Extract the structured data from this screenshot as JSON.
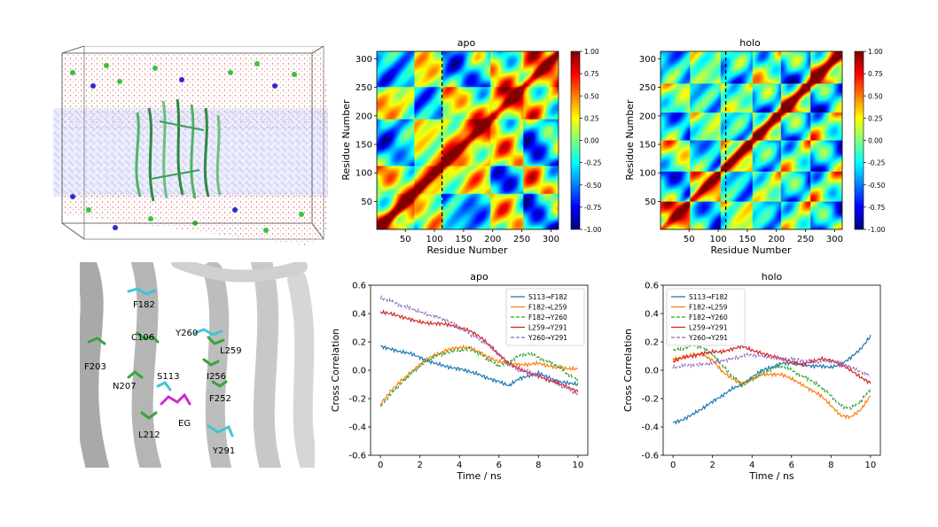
{
  "figure": {
    "membrane_panel": {
      "description_icon": "molecular-simulation-box"
    },
    "residue_panel": {
      "labels": [
        "F182",
        "C106",
        "Y260",
        "L259",
        "F203",
        "N207",
        "S113",
        "I256",
        "F252",
        "L212",
        "EG",
        "Y291"
      ]
    },
    "heatmaps": [
      {
        "title": "apo",
        "ylabel": "Residue Number",
        "xlabel": "Residue Number"
      },
      {
        "title": "holo",
        "ylabel": "Residue Number",
        "xlabel": "Residue Number"
      }
    ],
    "colorbar_ticks": [
      "1.00",
      "0.75",
      "0.50",
      "0.25",
      "0.00",
      "-0.25",
      "-0.50",
      "-0.75",
      "-1.00"
    ]
  },
  "chart_data": [
    {
      "type": "heatmap",
      "title": "apo",
      "xlabel": "Residue Number",
      "ylabel": "Residue Number",
      "xticks": [
        50,
        100,
        150,
        200,
        250,
        300
      ],
      "yticks": [
        50,
        100,
        150,
        200,
        250,
        300
      ],
      "xlim": [
        1,
        313
      ],
      "ylim": [
        1,
        313
      ],
      "vline": 113,
      "colorscale": "jet",
      "clim": [
        -1.0,
        1.0
      ]
    },
    {
      "type": "heatmap",
      "title": "holo",
      "xlabel": "Residue Number",
      "ylabel": "Residue Number",
      "xticks": [
        50,
        100,
        150,
        200,
        250,
        300
      ],
      "yticks": [
        50,
        100,
        150,
        200,
        250,
        300
      ],
      "xlim": [
        1,
        313
      ],
      "ylim": [
        1,
        313
      ],
      "vline": 113,
      "colorscale": "jet",
      "clim": [
        -1.0,
        1.0
      ]
    },
    {
      "type": "line",
      "title": "apo",
      "xlabel": "Time / ns",
      "ylabel": "Cross Correlation",
      "xlim": [
        -0.5,
        10.5
      ],
      "ylim": [
        -0.6,
        0.6
      ],
      "xticks": [
        0,
        2,
        4,
        6,
        8,
        10
      ],
      "yticks": [
        -0.6,
        -0.4,
        -0.2,
        0.0,
        0.2,
        0.4,
        0.6
      ],
      "legend": "top-right",
      "x": [
        0,
        0.5,
        1,
        1.5,
        2,
        2.5,
        3,
        3.5,
        4,
        4.5,
        5,
        5.5,
        6,
        6.5,
        7,
        7.5,
        8,
        8.5,
        9,
        9.5,
        10
      ],
      "series": [
        {
          "name": "S113→F182",
          "color": "#1f77b4",
          "dash": "solid",
          "values": [
            0.17,
            0.15,
            0.13,
            0.12,
            0.09,
            0.06,
            0.04,
            0.02,
            0.01,
            -0.01,
            -0.03,
            -0.06,
            -0.08,
            -0.11,
            -0.06,
            -0.04,
            -0.02,
            -0.05,
            -0.08,
            -0.09,
            -0.1
          ]
        },
        {
          "name": "F182→L259",
          "color": "#ff7f0e",
          "dash": "solid",
          "values": [
            -0.24,
            -0.15,
            -0.08,
            -0.02,
            0.04,
            0.09,
            0.12,
            0.15,
            0.16,
            0.16,
            0.13,
            0.09,
            0.06,
            0.05,
            0.04,
            0.04,
            0.05,
            0.03,
            0.02,
            0.01,
            0.01
          ]
        },
        {
          "name": "F182→Y260",
          "color": "#2ca02c",
          "dash": "dashed",
          "values": [
            -0.26,
            -0.17,
            -0.1,
            -0.03,
            0.03,
            0.08,
            0.11,
            0.13,
            0.14,
            0.15,
            0.12,
            0.07,
            0.03,
            0.06,
            0.1,
            0.12,
            0.09,
            0.06,
            0.03,
            -0.03,
            -0.07
          ]
        },
        {
          "name": "L259→Y291",
          "color": "#d62728",
          "dash": "solid",
          "values": [
            0.41,
            0.4,
            0.38,
            0.36,
            0.34,
            0.33,
            0.33,
            0.32,
            0.3,
            0.28,
            0.24,
            0.18,
            0.11,
            0.05,
            0.01,
            -0.02,
            -0.04,
            -0.07,
            -0.09,
            -0.12,
            -0.15
          ]
        },
        {
          "name": "Y260→Y291",
          "color": "#9467bd",
          "dash": "dashed",
          "values": [
            0.51,
            0.49,
            0.46,
            0.44,
            0.41,
            0.39,
            0.37,
            0.34,
            0.3,
            0.26,
            0.22,
            0.17,
            0.11,
            0.04,
            0.0,
            -0.01,
            -0.03,
            -0.06,
            -0.1,
            -0.13,
            -0.17
          ]
        }
      ]
    },
    {
      "type": "line",
      "title": "holo",
      "xlabel": "Time / ns",
      "ylabel": "Cross Correlation",
      "xlim": [
        -0.5,
        10.5
      ],
      "ylim": [
        -0.6,
        0.6
      ],
      "xticks": [
        0,
        2,
        4,
        6,
        8,
        10
      ],
      "yticks": [
        -0.6,
        -0.4,
        -0.2,
        0.0,
        0.2,
        0.4,
        0.6
      ],
      "legend": "top-left",
      "x": [
        0,
        0.5,
        1,
        1.5,
        2,
        2.5,
        3,
        3.5,
        4,
        4.5,
        5,
        5.5,
        6,
        6.5,
        7,
        7.5,
        8,
        8.5,
        9,
        9.5,
        10
      ],
      "series": [
        {
          "name": "S113→F182",
          "color": "#1f77b4",
          "dash": "solid",
          "values": [
            -0.37,
            -0.35,
            -0.31,
            -0.27,
            -0.22,
            -0.18,
            -0.13,
            -0.1,
            -0.05,
            0.0,
            0.02,
            0.05,
            0.05,
            0.04,
            0.03,
            0.03,
            0.02,
            0.04,
            0.09,
            0.15,
            0.24
          ]
        },
        {
          "name": "F182→L259",
          "color": "#ff7f0e",
          "dash": "solid",
          "values": [
            0.08,
            0.09,
            0.11,
            0.11,
            0.07,
            -0.01,
            -0.06,
            -0.1,
            -0.06,
            -0.03,
            -0.03,
            -0.03,
            -0.06,
            -0.1,
            -0.14,
            -0.18,
            -0.25,
            -0.32,
            -0.33,
            -0.28,
            -0.18
          ]
        },
        {
          "name": "F182→Y260",
          "color": "#2ca02c",
          "dash": "dashed",
          "values": [
            0.14,
            0.15,
            0.18,
            0.16,
            0.11,
            0.03,
            -0.04,
            -0.1,
            -0.07,
            -0.02,
            0.01,
            0.03,
            0.0,
            -0.04,
            -0.07,
            -0.12,
            -0.18,
            -0.25,
            -0.27,
            -0.22,
            -0.13
          ]
        },
        {
          "name": "L259→Y291",
          "color": "#d62728",
          "dash": "solid",
          "values": [
            0.06,
            0.09,
            0.1,
            0.12,
            0.13,
            0.13,
            0.15,
            0.17,
            0.14,
            0.12,
            0.1,
            0.08,
            0.06,
            0.04,
            0.06,
            0.08,
            0.07,
            0.04,
            0.0,
            -0.05,
            -0.09
          ]
        },
        {
          "name": "Y260→Y291",
          "color": "#9467bd",
          "dash": "dashed",
          "values": [
            0.02,
            0.03,
            0.04,
            0.04,
            0.05,
            0.07,
            0.08,
            0.1,
            0.11,
            0.1,
            0.09,
            0.08,
            0.08,
            0.07,
            0.06,
            0.06,
            0.07,
            0.05,
            0.02,
            -0.01,
            -0.04
          ]
        }
      ]
    }
  ]
}
